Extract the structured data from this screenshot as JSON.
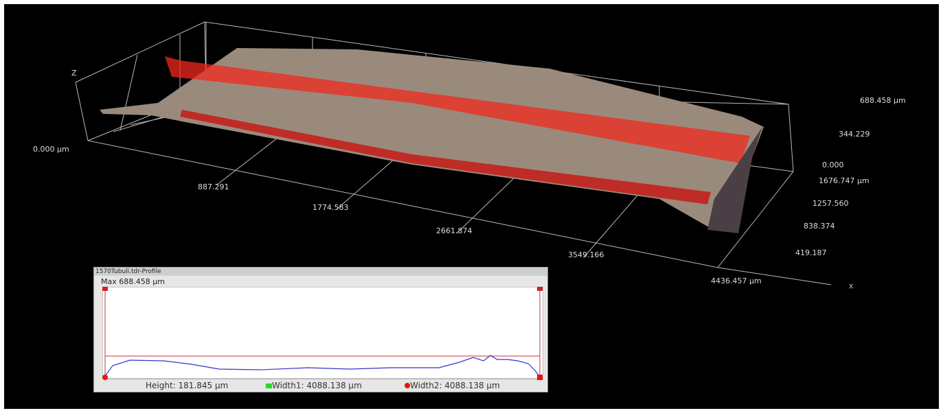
{
  "view3d": {
    "z_axis": "Z",
    "x_axis": "X",
    "x_labels": [
      "0.000 μm",
      "887.291",
      "1774.583",
      "2661.874",
      "3549.166",
      "4436.457 μm"
    ],
    "z_labels": [
      "688.458 μm",
      "344.229",
      "0.000"
    ],
    "y_labels": [
      "1676.747 μm",
      "1257.560",
      "838.374",
      "419.187"
    ]
  },
  "profile": {
    "title": "1570Tubuli.tdr-Profile",
    "max": "Max  688.458 μm",
    "height": "Height: 181.845 μm",
    "width1": "Width1:  4088.138 μm",
    "width2": "Width2:  4088.138 μm"
  }
}
